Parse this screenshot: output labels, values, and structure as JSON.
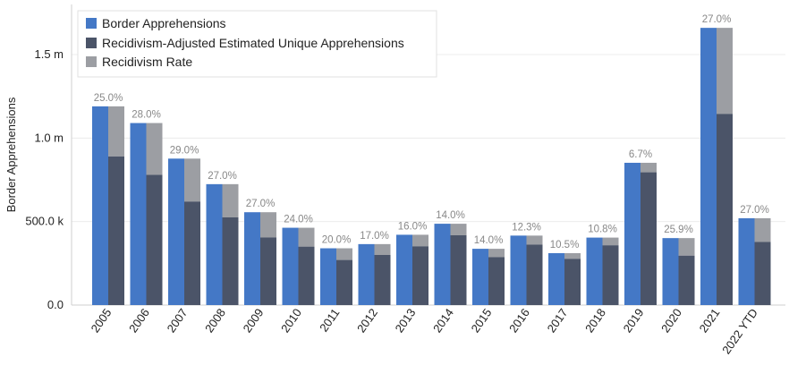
{
  "chart_data": {
    "type": "bar",
    "ylabel": "Border Apprehensions",
    "yticks": [
      "0.0",
      "500.0 k",
      "1.0 m",
      "1.5 m"
    ],
    "ytick_values": [
      0,
      500000,
      1000000,
      1500000
    ],
    "ylim": [
      0,
      1800000
    ],
    "grid": true,
    "legend_position": "top-left",
    "categories": [
      "2005",
      "2006",
      "2007",
      "2008",
      "2009",
      "2010",
      "2011",
      "2012",
      "2013",
      "2014",
      "2015",
      "2016",
      "2017",
      "2018",
      "2019",
      "2020",
      "2021",
      "2022 YTD"
    ],
    "series": [
      {
        "name": "Border Apprehensions",
        "color": "#4478c6",
        "values": [
          1190000,
          1090000,
          877000,
          724000,
          556000,
          463000,
          340000,
          365000,
          421000,
          487000,
          337000,
          416000,
          311000,
          404000,
          852000,
          401000,
          1660000,
          520000
        ]
      },
      {
        "name": "Recidivism-Adjusted Estimated Unique Apprehensions",
        "color": "#4b5468",
        "values": [
          890000,
          780000,
          620000,
          525000,
          405000,
          350000,
          270000,
          300000,
          352000,
          418000,
          287000,
          362000,
          277000,
          358000,
          795000,
          296000,
          1145000,
          378000
        ]
      },
      {
        "name": "Recidivism Rate",
        "color": "#9c9ea3",
        "labels": [
          "25.0%",
          "28.0%",
          "29.0%",
          "27.0%",
          "27.0%",
          "24.0%",
          "20.0%",
          "17.0%",
          "16.0%",
          "14.0%",
          "14.0%",
          "12.3%",
          "10.5%",
          "10.8%",
          "6.7%",
          "25.9%",
          "27.0%",
          "27.0%"
        ]
      }
    ]
  }
}
